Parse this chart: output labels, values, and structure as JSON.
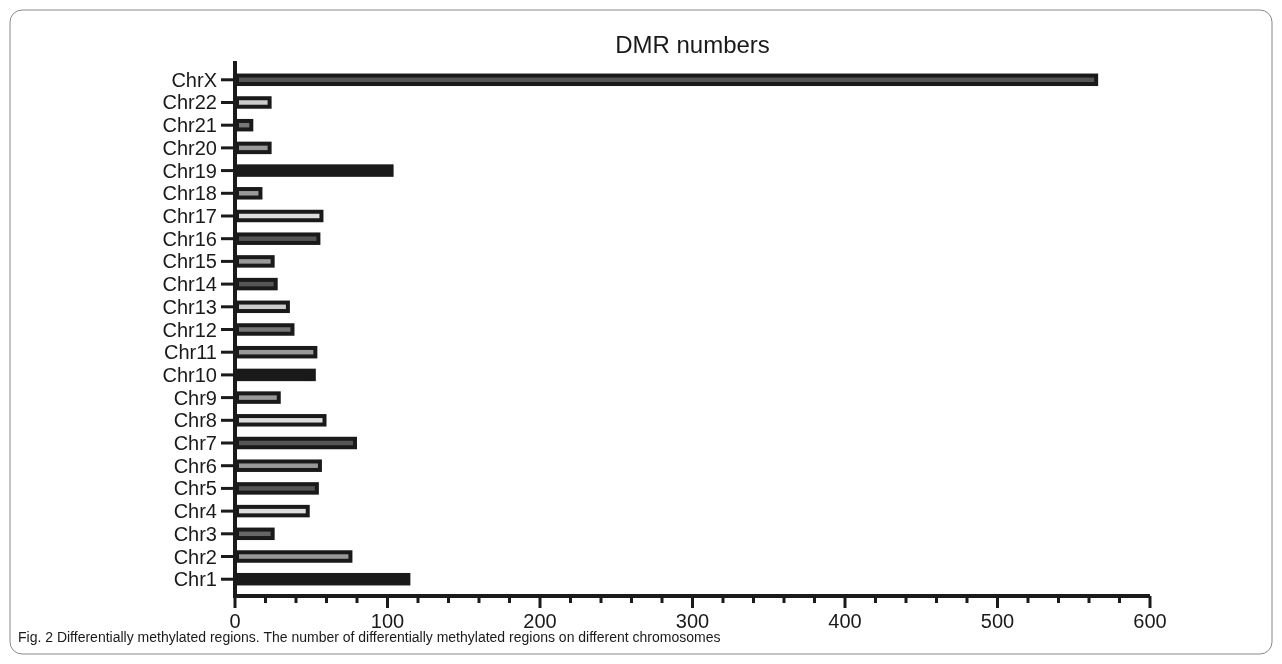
{
  "chart_data": {
    "type": "bar",
    "orientation": "horizontal",
    "title": "DMR numbers",
    "categories": [
      "ChrX",
      "Chr22",
      "Chr21",
      "Chr20",
      "Chr19",
      "Chr18",
      "Chr17",
      "Chr16",
      "Chr15",
      "Chr14",
      "Chr13",
      "Chr12",
      "Chr11",
      "Chr10",
      "Chr9",
      "Chr8",
      "Chr7",
      "Chr6",
      "Chr5",
      "Chr4",
      "Chr3",
      "Chr2",
      "Chr1"
    ],
    "values": [
      566,
      24,
      12,
      24,
      104,
      18,
      58,
      56,
      26,
      28,
      36,
      39,
      54,
      53,
      30,
      60,
      80,
      57,
      55,
      49,
      26,
      77,
      115
    ],
    "colors": [
      "#555555",
      "#cccccc",
      "#777777",
      "#999999",
      "#1a1a1a",
      "#999999",
      "#dddddd",
      "#555555",
      "#999999",
      "#555555",
      "#cccccc",
      "#777777",
      "#999999",
      "#1a1a1a",
      "#999999",
      "#dddddd",
      "#555555",
      "#999999",
      "#555555",
      "#dddddd",
      "#666666",
      "#999999",
      "#1a1a1a"
    ],
    "xlim": [
      0,
      600
    ],
    "xticks": [
      0,
      {
        "value": 20,
        "label": null
      },
      {
        "value": 40,
        "label": null
      },
      {
        "value": 60,
        "label": null
      },
      {
        "value": 80,
        "label": null
      },
      100,
      {
        "value": 120,
        "label": null
      },
      {
        "value": 140,
        "label": null
      },
      {
        "value": 160,
        "label": null
      },
      {
        "value": 180,
        "label": null
      },
      200,
      {
        "value": 220,
        "label": null
      },
      {
        "value": 240,
        "label": null
      },
      {
        "value": 260,
        "label": null
      },
      {
        "value": 280,
        "label": null
      },
      300,
      {
        "value": 320,
        "label": null
      },
      {
        "value": 340,
        "label": null
      },
      {
        "value": 360,
        "label": null
      },
      {
        "value": 380,
        "label": null
      },
      400,
      {
        "value": 420,
        "label": null
      },
      {
        "value": 440,
        "label": null
      },
      {
        "value": 460,
        "label": null
      },
      {
        "value": 480,
        "label": null
      },
      500,
      {
        "value": 520,
        "label": null
      },
      {
        "value": 540,
        "label": null
      },
      {
        "value": 560,
        "label": null
      },
      {
        "value": 580,
        "label": null
      },
      600
    ],
    "grid": false,
    "annotations": [
      "Fig. 2  Differentially methylated regions. The number of differentially methylated regions on different chromosomes"
    ]
  }
}
